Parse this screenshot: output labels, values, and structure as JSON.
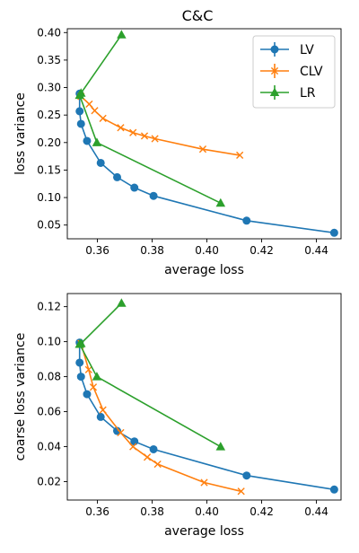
{
  "figure": {
    "title": "C&C"
  },
  "chart_data": [
    {
      "type": "line",
      "xlabel": "average loss",
      "ylabel": "loss variance",
      "xlim": [
        0.349,
        0.449
      ],
      "ylim": [
        0.025,
        0.407
      ],
      "xticks": [
        0.36,
        0.38,
        0.4,
        0.42,
        0.44
      ],
      "xtick_labels": [
        "0.36",
        "0.38",
        "0.40",
        "0.42",
        "0.44"
      ],
      "yticks": [
        0.05,
        0.1,
        0.15,
        0.2,
        0.25,
        0.3,
        0.35,
        0.4
      ],
      "ytick_labels": [
        "0.05",
        "0.10",
        "0.15",
        "0.20",
        "0.25",
        "0.30",
        "0.35",
        "0.40"
      ],
      "grid": false,
      "legend": "top-right",
      "series": [
        {
          "name": "LV",
          "color": "#1f77b4",
          "marker": "circle",
          "x": [
            0.3535,
            0.3535,
            0.354,
            0.3562,
            0.3612,
            0.3672,
            0.3735,
            0.3805,
            0.4145,
            0.4465
          ],
          "y": [
            0.289,
            0.257,
            0.234,
            0.203,
            0.163,
            0.137,
            0.118,
            0.103,
            0.058,
            0.036
          ]
        },
        {
          "name": "CLV",
          "color": "#ff7f0e",
          "marker": "x",
          "x": [
            0.354,
            0.357,
            0.359,
            0.362,
            0.3685,
            0.373,
            0.3772,
            0.381,
            0.3985,
            0.412
          ],
          "y": [
            0.284,
            0.27,
            0.258,
            0.244,
            0.227,
            0.218,
            0.212,
            0.207,
            0.188,
            0.177
          ]
        },
        {
          "name": "LR",
          "color": "#2ca02c",
          "marker": "triangle",
          "x": [
            0.3688,
            0.354,
            0.3535,
            0.3598,
            0.405
          ],
          "y": [
            0.396,
            0.29,
            0.286,
            0.2,
            0.09
          ]
        }
      ]
    },
    {
      "type": "line",
      "xlabel": "average loss",
      "ylabel": "coarse loss variance",
      "xlim": [
        0.349,
        0.449
      ],
      "ylim": [
        0.0095,
        0.1275
      ],
      "xticks": [
        0.36,
        0.38,
        0.4,
        0.42,
        0.44
      ],
      "xtick_labels": [
        "0.36",
        "0.38",
        "0.40",
        "0.42",
        "0.44"
      ],
      "yticks": [
        0.02,
        0.04,
        0.06,
        0.08,
        0.1,
        0.12
      ],
      "ytick_labels": [
        "0.02",
        "0.04",
        "0.06",
        "0.08",
        "0.10",
        "0.12"
      ],
      "grid": false,
      "series": [
        {
          "name": "LV",
          "color": "#1f77b4",
          "marker": "circle",
          "x": [
            0.3535,
            0.3535,
            0.354,
            0.3562,
            0.3612,
            0.3672,
            0.3735,
            0.3805,
            0.4145,
            0.4465
          ],
          "y": [
            0.0995,
            0.088,
            0.08,
            0.07,
            0.057,
            0.049,
            0.043,
            0.0385,
            0.0235,
            0.0155
          ]
        },
        {
          "name": "CLV",
          "color": "#ff7f0e",
          "marker": "x",
          "x": [
            0.354,
            0.3568,
            0.3585,
            0.362,
            0.3685,
            0.373,
            0.3782,
            0.382,
            0.399,
            0.4125
          ],
          "y": [
            0.099,
            0.084,
            0.074,
            0.061,
            0.048,
            0.04,
            0.034,
            0.03,
            0.0195,
            0.0145
          ]
        },
        {
          "name": "LR",
          "color": "#2ca02c",
          "marker": "triangle",
          "x": [
            0.3688,
            0.354,
            0.3535,
            0.3598,
            0.405
          ],
          "y": [
            0.122,
            0.099,
            0.0985,
            0.08,
            0.04
          ]
        }
      ]
    }
  ]
}
